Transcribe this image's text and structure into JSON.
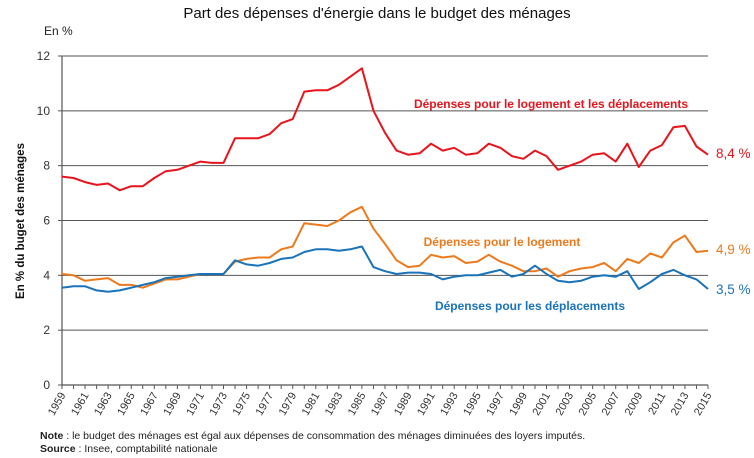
{
  "chart_data": {
    "type": "line",
    "title": "Part des dépenses d'énergie dans le budget des ménages",
    "unit_label": "En %",
    "ylabel": "En % du buget des ménages",
    "xlabel": "",
    "ylim": [
      0,
      12
    ],
    "yticks": [
      "0",
      "2",
      "4",
      "6",
      "8",
      "10",
      "12"
    ],
    "ytick_values": [
      0,
      2,
      4,
      6,
      8,
      10,
      12
    ],
    "grid": "horizontal",
    "x": [
      1959,
      1960,
      1961,
      1962,
      1963,
      1964,
      1965,
      1966,
      1967,
      1968,
      1969,
      1970,
      1971,
      1972,
      1973,
      1974,
      1975,
      1976,
      1977,
      1978,
      1979,
      1980,
      1981,
      1982,
      1983,
      1984,
      1985,
      1986,
      1987,
      1988,
      1989,
      1990,
      1991,
      1992,
      1993,
      1994,
      1995,
      1996,
      1997,
      1998,
      1999,
      2000,
      2001,
      2002,
      2003,
      2004,
      2005,
      2006,
      2007,
      2008,
      2009,
      2010,
      2011,
      2012,
      2013,
      2014,
      2015
    ],
    "xtick_labels": [
      "1959",
      "1961",
      "1963",
      "1965",
      "1967",
      "1969",
      "1971",
      "1973",
      "1975",
      "1977",
      "1979",
      "1981",
      "1983",
      "1985",
      "1987",
      "1989",
      "1991",
      "1993",
      "1995",
      "1997",
      "1999",
      "2001",
      "2003",
      "2005",
      "2007",
      "2009",
      "2011",
      "2013",
      "2015"
    ],
    "series": [
      {
        "name": "Dépenses pour le logement et les déplacements",
        "color": "#e8141c",
        "end_label": "8,4 %",
        "values": [
          7.6,
          7.55,
          7.4,
          7.3,
          7.35,
          7.1,
          7.25,
          7.25,
          7.55,
          7.8,
          7.85,
          8.0,
          8.15,
          8.1,
          8.1,
          9.0,
          9.0,
          9.0,
          9.15,
          9.55,
          9.7,
          10.7,
          10.75,
          10.75,
          10.95,
          11.25,
          11.55,
          10.0,
          9.2,
          8.55,
          8.4,
          8.45,
          8.8,
          8.55,
          8.65,
          8.4,
          8.45,
          8.8,
          8.65,
          8.35,
          8.25,
          8.55,
          8.35,
          7.85,
          8.0,
          8.15,
          8.4,
          8.45,
          8.15,
          8.8,
          7.95,
          8.55,
          8.75,
          9.4,
          9.45,
          8.7,
          8.4
        ]
      },
      {
        "name": "Dépenses pour le logement",
        "color": "#ec7a1c",
        "end_label": "4,9 %",
        "values": [
          4.05,
          4.0,
          3.8,
          3.85,
          3.9,
          3.65,
          3.65,
          3.55,
          3.7,
          3.85,
          3.85,
          3.95,
          4.05,
          4.05,
          4.05,
          4.5,
          4.6,
          4.65,
          4.65,
          4.95,
          5.05,
          5.9,
          5.85,
          5.8,
          6.0,
          6.3,
          6.5,
          5.7,
          5.15,
          4.55,
          4.3,
          4.35,
          4.75,
          4.65,
          4.7,
          4.45,
          4.5,
          4.75,
          4.5,
          4.35,
          4.15,
          4.15,
          4.25,
          3.95,
          4.15,
          4.25,
          4.3,
          4.45,
          4.15,
          4.6,
          4.45,
          4.8,
          4.65,
          5.2,
          5.45,
          4.85,
          4.9
        ]
      },
      {
        "name": "Dépenses pour les déplacements",
        "color": "#1a73b8",
        "end_label": "3,5 %",
        "values": [
          3.55,
          3.6,
          3.6,
          3.45,
          3.4,
          3.45,
          3.55,
          3.65,
          3.75,
          3.9,
          3.95,
          4.0,
          4.05,
          4.05,
          4.05,
          4.55,
          4.4,
          4.35,
          4.45,
          4.6,
          4.65,
          4.85,
          4.95,
          4.95,
          4.9,
          4.95,
          5.05,
          4.3,
          4.15,
          4.05,
          4.1,
          4.1,
          4.05,
          3.85,
          3.95,
          4.0,
          4.0,
          4.1,
          4.2,
          3.95,
          4.05,
          4.35,
          4.05,
          3.8,
          3.75,
          3.8,
          3.95,
          4.0,
          3.95,
          4.15,
          3.5,
          3.75,
          4.05,
          4.2,
          4.0,
          3.85,
          3.5
        ]
      }
    ],
    "series_label_placement": "inline-near-lines",
    "end_label_placement": "right-of-last-point"
  },
  "footnotes": {
    "note_label": "Note",
    "note_text": " : le budget des ménages est égal aux dépenses de consommation des ménages diminuées des loyers imputés.",
    "source_label": "Source",
    "source_text": " : Insee, comptabilité nationale"
  }
}
